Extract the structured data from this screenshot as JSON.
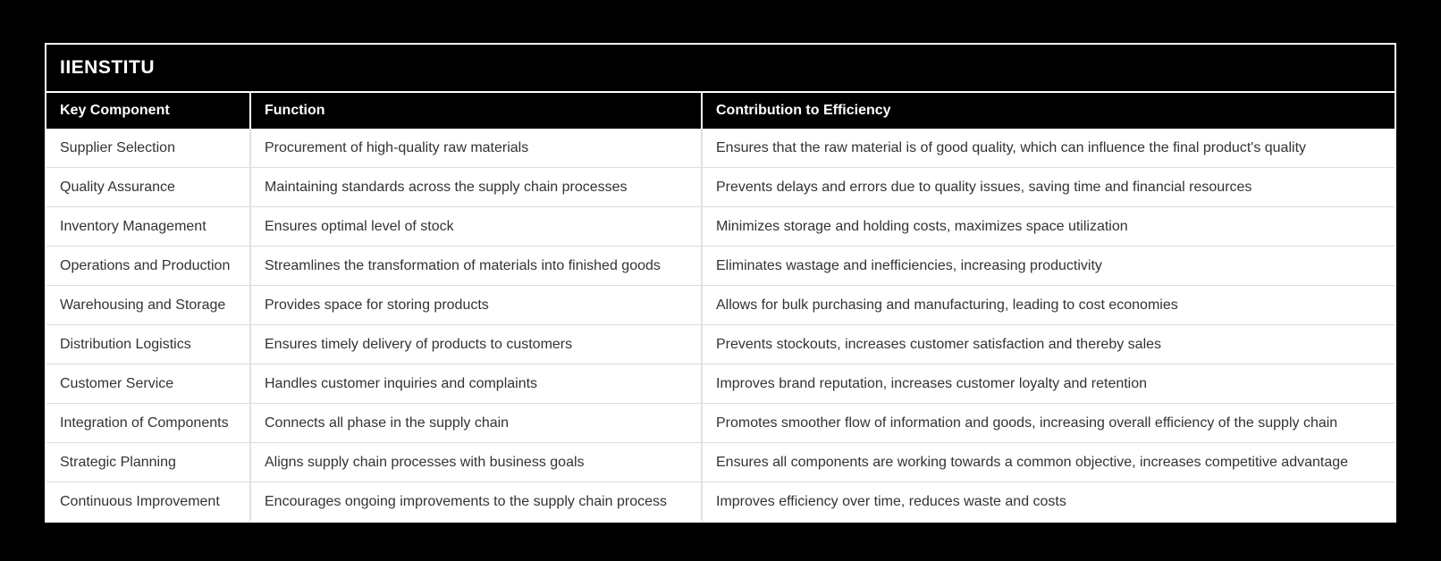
{
  "brand": {
    "title": "IIENSTITU"
  },
  "table": {
    "columns": [
      "Key Component",
      "Function",
      "Contribution to Efficiency"
    ],
    "rows": [
      [
        "Supplier Selection",
        "Procurement of high-quality raw materials",
        "Ensures that the raw material is of good quality, which can influence the final product's quality"
      ],
      [
        "Quality Assurance",
        "Maintaining standards across the supply chain processes",
        "Prevents delays and errors due to quality issues, saving time and financial resources"
      ],
      [
        "Inventory Management",
        "Ensures optimal level of stock",
        "Minimizes storage and holding costs, maximizes space utilization"
      ],
      [
        "Operations and Production",
        "Streamlines the transformation of materials into finished goods",
        "Eliminates wastage and inefficiencies, increasing productivity"
      ],
      [
        "Warehousing and Storage",
        "Provides space for storing products",
        "Allows for bulk purchasing and manufacturing, leading to cost economies"
      ],
      [
        "Distribution Logistics",
        "Ensures timely delivery of products to customers",
        "Prevents stockouts, increases customer satisfaction and thereby sales"
      ],
      [
        "Customer Service",
        "Handles customer inquiries and complaints",
        "Improves brand reputation, increases customer loyalty and retention"
      ],
      [
        "Integration of Components",
        "Connects all phase in the supply chain",
        "Promotes smoother flow of information and goods, increasing overall efficiency of the supply chain"
      ],
      [
        "Strategic Planning",
        "Aligns supply chain processes with business goals",
        "Ensures all components are working towards a common objective, increases competitive advantage"
      ],
      [
        "Continuous Improvement",
        "Encourages ongoing improvements to the supply chain process",
        "Improves efficiency over time, reduces waste and costs"
      ]
    ]
  },
  "colors": {
    "page_background": "#000000",
    "header_background": "#000000",
    "header_text": "#ffffff",
    "row_background": "#ffffff",
    "row_text": "#333333",
    "frame_border": "#ffffff",
    "body_border": "#e0e0e0"
  }
}
